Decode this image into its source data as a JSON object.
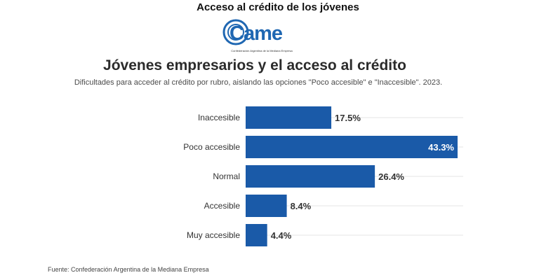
{
  "header": {
    "title": "Acceso al crédito de los jóvenes"
  },
  "logo": {
    "wordmark": "Came",
    "tagline": "Confederación Argentina de la Mediana Empresa"
  },
  "colors": {
    "bar": "#1a5aa8",
    "logo_blue": "#1f67b2",
    "gridline": "#e4e4e4"
  },
  "chart_data": {
    "type": "bar",
    "orientation": "horizontal",
    "title": "Jóvenes empresarios y el acceso al crédito",
    "subtitle": "Dificultades para acceder al crédito por rubro, aislando las opciones \"Poco accesible\" e \"Inaccesible\". 2023.",
    "categories": [
      "Inaccesible",
      "Poco accesible",
      "Normal",
      "Accesible",
      "Muy accesible"
    ],
    "values": [
      17.5,
      43.3,
      26.4,
      8.4,
      4.4
    ],
    "value_labels": [
      "17.5%",
      "43.3%",
      "26.4%",
      "8.4%",
      "4.4%"
    ],
    "xlim": [
      0,
      43.3
    ],
    "grid": true,
    "source": "Fuente: Confederación Argentina de la Mediana Empresa"
  }
}
